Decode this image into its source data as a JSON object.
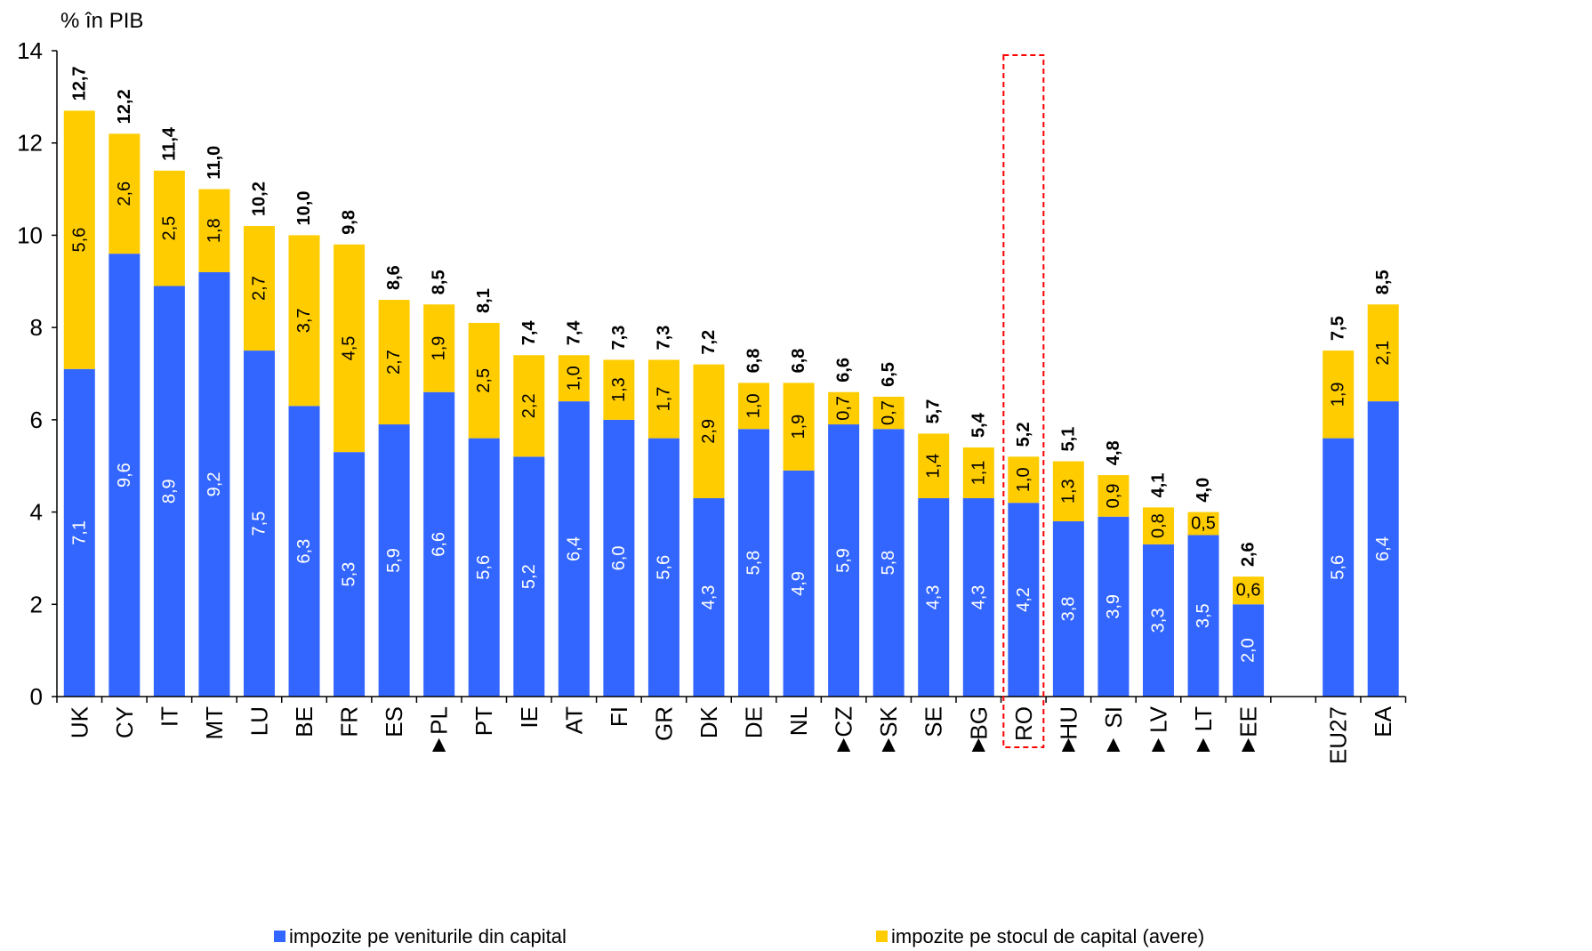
{
  "chart_data": {
    "type": "bar",
    "stacked": true,
    "ylabel": "% în PIB",
    "ylim": [
      0,
      14
    ],
    "yticks": [
      0,
      2,
      4,
      6,
      8,
      10,
      12,
      14
    ],
    "grid": false,
    "legend_position": "bottom",
    "categories": [
      "UK",
      "CY",
      "IT",
      "MT",
      "LU",
      "BE",
      "FR",
      "ES",
      "PL",
      "PT",
      "IE",
      "AT",
      "FI",
      "GR",
      "DK",
      "DE",
      "NL",
      "CZ",
      "SK",
      "SE",
      "BG",
      "RO",
      "HU",
      "SI",
      "LV",
      "LT",
      "EE",
      "",
      "EU27",
      "EA"
    ],
    "markers": [
      "",
      "",
      "",
      "",
      "",
      "",
      "",
      "",
      "▲",
      "",
      "",
      "",
      "",
      "",
      "",
      "",
      "",
      "▲",
      "▲",
      "",
      "▲",
      "",
      "▲",
      "▲",
      "▲",
      "▲",
      "▲",
      "",
      "",
      ""
    ],
    "highlighted_category": "RO",
    "highlight_color": "#FF0000",
    "series": [
      {
        "name": "impozite pe veniturile din capital",
        "color": "#3366FF",
        "values": [
          7.1,
          9.6,
          8.9,
          9.2,
          7.5,
          6.3,
          5.3,
          5.9,
          6.6,
          5.6,
          5.2,
          6.4,
          6.0,
          5.6,
          4.3,
          5.8,
          4.9,
          5.9,
          5.8,
          4.3,
          4.3,
          4.2,
          3.8,
          3.9,
          3.3,
          3.5,
          2.0,
          null,
          5.6,
          6.4
        ]
      },
      {
        "name": "impozite pe stocul de capital (avere)",
        "color": "#FFCC00",
        "values": [
          5.6,
          2.6,
          2.5,
          1.8,
          2.7,
          3.7,
          4.5,
          2.7,
          1.9,
          2.5,
          2.2,
          1.0,
          1.3,
          1.7,
          2.9,
          1.0,
          1.9,
          0.7,
          0.7,
          1.4,
          1.1,
          1.0,
          1.3,
          0.9,
          0.8,
          0.5,
          0.6,
          null,
          1.9,
          2.1
        ]
      }
    ],
    "totals": [
      12.7,
      12.2,
      11.4,
      11.0,
      10.2,
      10.0,
      9.8,
      8.6,
      8.5,
      8.1,
      7.4,
      7.4,
      7.3,
      7.3,
      7.2,
      6.8,
      6.8,
      6.6,
      6.5,
      5.7,
      5.4,
      5.2,
      5.1,
      4.8,
      4.1,
      4.0,
      2.6,
      null,
      7.5,
      8.5
    ]
  }
}
